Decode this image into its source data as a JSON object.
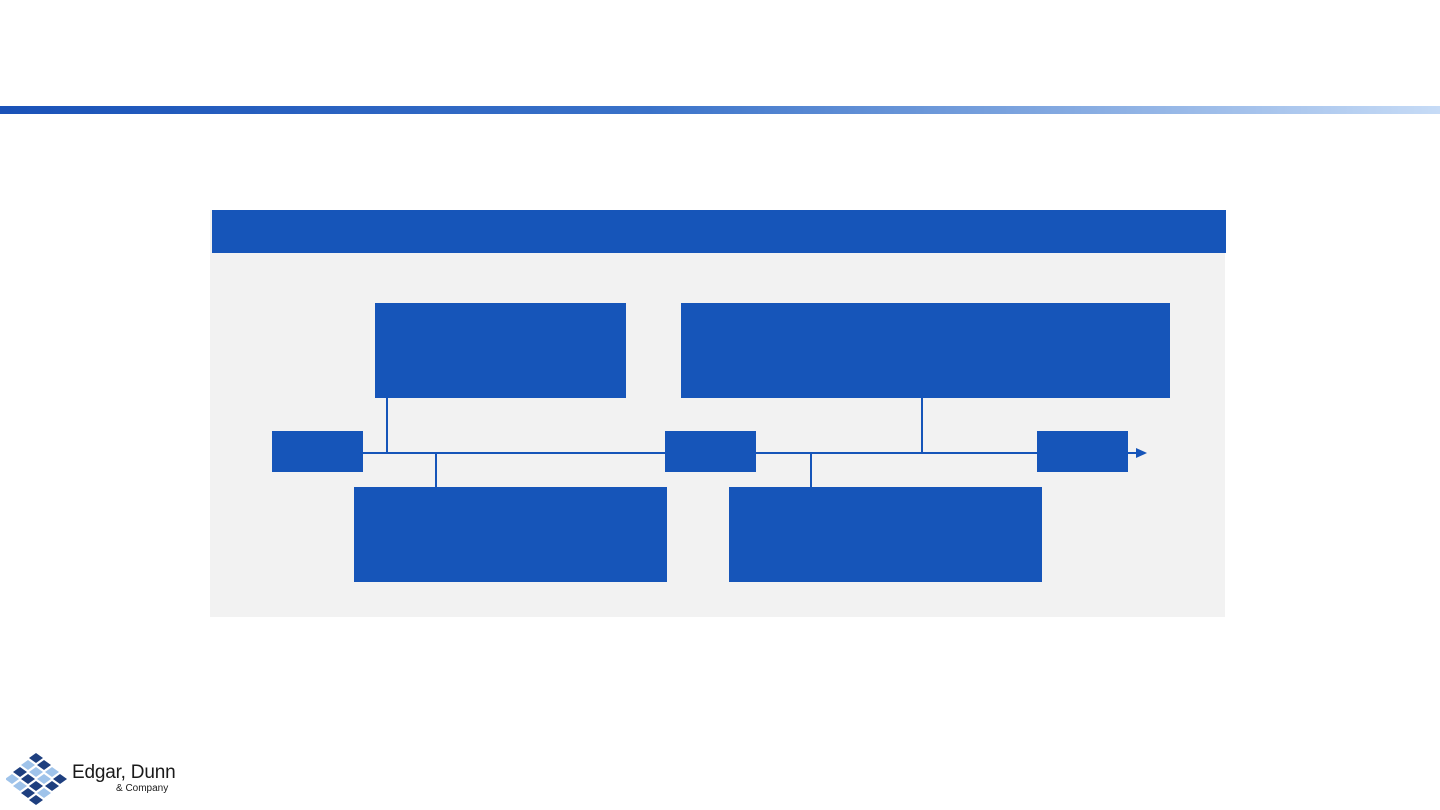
{
  "colors": {
    "accent_blue": "#1655b9",
    "panel_gray": "#f2f2f2",
    "gradient_start": "#1a52b8",
    "gradient_end": "#c6dbf6",
    "logo_dark": "#1e3f7f",
    "logo_light": "#9fc3ea"
  },
  "panel": {
    "header_title": ""
  },
  "timeline": {
    "milestones": [
      {
        "id": "start",
        "label": ""
      },
      {
        "id": "mid",
        "label": ""
      },
      {
        "id": "end",
        "label": ""
      }
    ],
    "callouts": {
      "top_left": "",
      "top_right": "",
      "bottom_left": "",
      "bottom_right": ""
    }
  },
  "logo": {
    "name": "Edgar, Dunn",
    "sub": "& Company",
    "icon": "diamond-cluster-icon"
  }
}
